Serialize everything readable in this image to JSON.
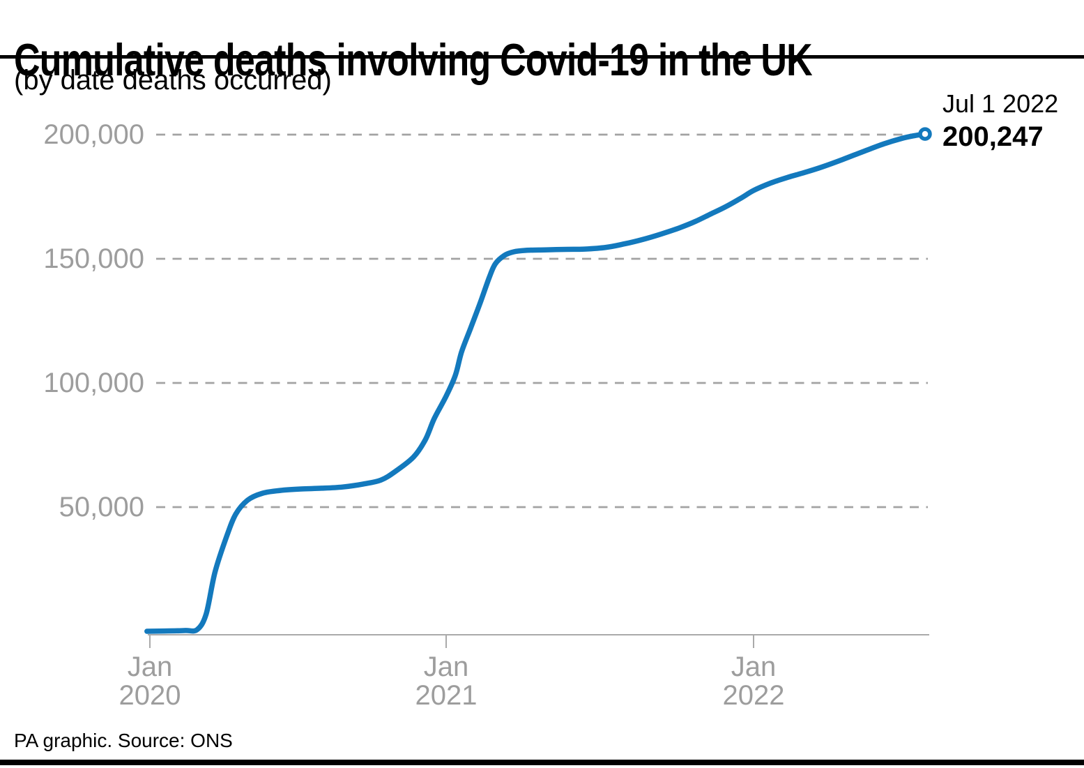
{
  "header": {
    "title": "Cumulative deaths involving Covid-19 in the UK",
    "subtitle": "(by date deaths occurred)"
  },
  "annotation": {
    "date": "Jul 1 2022",
    "value": "200,247"
  },
  "footer": {
    "source": "PA graphic. Source: ONS"
  },
  "chart_data": {
    "type": "line",
    "title": "Cumulative deaths involving Covid-19 in the UK",
    "subtitle": "(by date deaths occurred)",
    "source": "PA graphic. Source: ONS",
    "xlabel": "",
    "ylabel": "",
    "ylim": [
      0,
      200000
    ],
    "grid": "dashed-horizontal",
    "legend": "none",
    "y_axis": {
      "ticks": [
        {
          "value": 50000,
          "label": "50,000"
        },
        {
          "value": 100000,
          "label": "100,000"
        },
        {
          "value": 150000,
          "label": "150,000"
        },
        {
          "value": 200000,
          "label": "200,000"
        }
      ]
    },
    "x_axis": {
      "ticks": [
        {
          "year": 2020,
          "line1": "Jan",
          "line2": "2020"
        },
        {
          "year": 2021,
          "line1": "Jan",
          "line2": "2021"
        },
        {
          "year": 2022,
          "line1": "Jan",
          "line2": "2022"
        }
      ]
    },
    "annotation": {
      "label_date": "Jul 1 2022",
      "label_value": "200,247",
      "x": 2022.5,
      "y": 200247
    },
    "series": [
      {
        "name": "Cumulative deaths involving Covid-19 in the UK",
        "points": [
          [
            2019.99,
            0
          ],
          [
            2020.05,
            100
          ],
          [
            2020.12,
            300
          ],
          [
            2020.16,
            700
          ],
          [
            2020.19,
            7000
          ],
          [
            2020.22,
            23900
          ],
          [
            2020.26,
            38500
          ],
          [
            2020.29,
            47200
          ],
          [
            2020.33,
            52800
          ],
          [
            2020.38,
            55600
          ],
          [
            2020.44,
            56700
          ],
          [
            2020.51,
            57300
          ],
          [
            2020.58,
            57600
          ],
          [
            2020.65,
            58100
          ],
          [
            2020.72,
            59300
          ],
          [
            2020.78,
            60900
          ],
          [
            2020.83,
            64500
          ],
          [
            2020.89,
            70200
          ],
          [
            2020.93,
            77200
          ],
          [
            2020.96,
            85700
          ],
          [
            2021.0,
            94700
          ],
          [
            2021.03,
            103100
          ],
          [
            2021.05,
            112400
          ],
          [
            2021.08,
            122200
          ],
          [
            2021.11,
            132000
          ],
          [
            2021.14,
            142400
          ],
          [
            2021.16,
            148000
          ],
          [
            2021.19,
            151400
          ],
          [
            2021.22,
            152800
          ],
          [
            2021.26,
            153400
          ],
          [
            2021.32,
            153600
          ],
          [
            2021.39,
            153800
          ],
          [
            2021.45,
            153900
          ],
          [
            2021.52,
            154600
          ],
          [
            2021.58,
            156000
          ],
          [
            2021.64,
            157800
          ],
          [
            2021.7,
            160000
          ],
          [
            2021.76,
            162500
          ],
          [
            2021.81,
            165000
          ],
          [
            2021.86,
            168000
          ],
          [
            2021.91,
            171000
          ],
          [
            2021.96,
            174500
          ],
          [
            2022.0,
            177500
          ],
          [
            2022.05,
            180500
          ],
          [
            2022.1,
            182800
          ],
          [
            2022.15,
            184800
          ],
          [
            2022.2,
            187000
          ],
          [
            2022.26,
            190000
          ],
          [
            2022.32,
            193200
          ],
          [
            2022.38,
            196300
          ],
          [
            2022.43,
            198400
          ],
          [
            2022.47,
            199600
          ],
          [
            2022.5,
            200247
          ]
        ]
      }
    ],
    "colors": {
      "line": "#1379bd",
      "grid": "#a3a3a3",
      "axis": "#aaaaaa",
      "tick_label": "#9d9d9d",
      "text": "#000000",
      "background": "#ffffff"
    }
  }
}
